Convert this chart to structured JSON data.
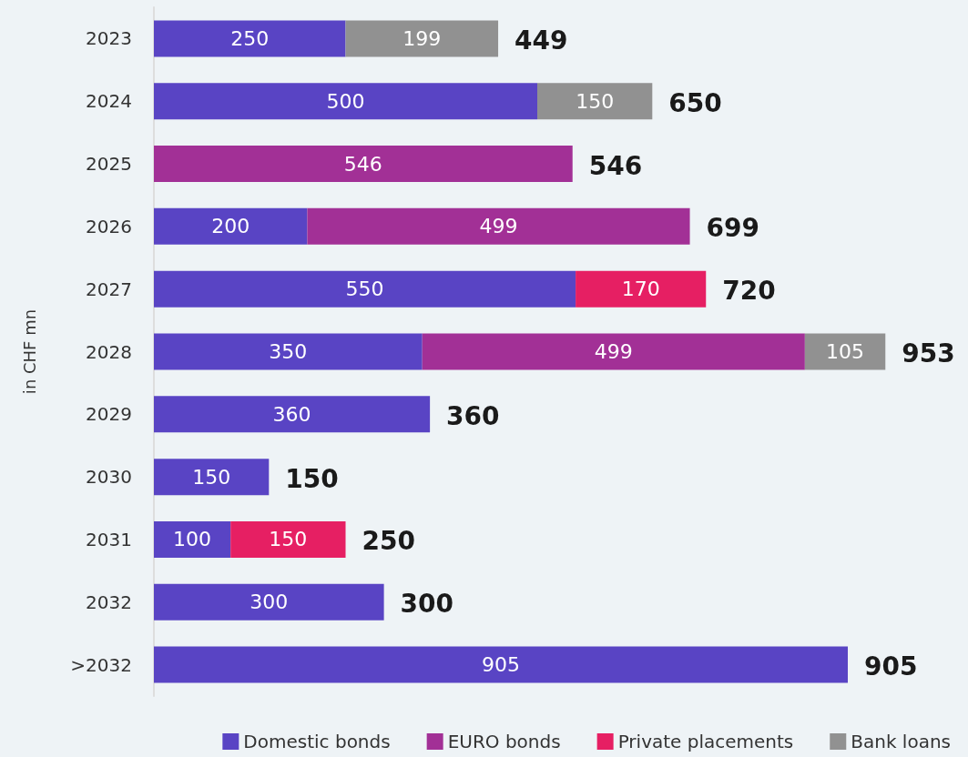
{
  "chart_data": {
    "type": "bar",
    "orientation": "horizontal",
    "stacked": true,
    "ylabel": "in CHF mn",
    "categories": [
      "2023",
      "2024",
      "2025",
      "2026",
      "2027",
      "2028",
      "2029",
      "2030",
      "2031",
      "2032",
      ">2032"
    ],
    "series": [
      {
        "name": "Domestic bonds",
        "color": "#5944c4",
        "values": [
          250,
          500,
          null,
          200,
          550,
          350,
          360,
          150,
          100,
          300,
          905
        ]
      },
      {
        "name": "EURO bonds",
        "color": "#a23096",
        "values": [
          null,
          null,
          546,
          499,
          null,
          499,
          null,
          null,
          null,
          null,
          null
        ]
      },
      {
        "name": "Private placements",
        "color": "#e61f63",
        "values": [
          null,
          null,
          null,
          null,
          170,
          null,
          null,
          null,
          150,
          null,
          null
        ]
      },
      {
        "name": "Bank loans",
        "color": "#919191",
        "values": [
          199,
          150,
          null,
          null,
          null,
          105,
          null,
          null,
          null,
          null,
          null
        ]
      }
    ],
    "totals": [
      "449",
      "650",
      "546",
      "699",
      "720",
      "953",
      "360",
      "150",
      "250",
      "300",
      "905"
    ],
    "data_labels": true,
    "legend": "bottom right",
    "tick_labels": "y"
  }
}
